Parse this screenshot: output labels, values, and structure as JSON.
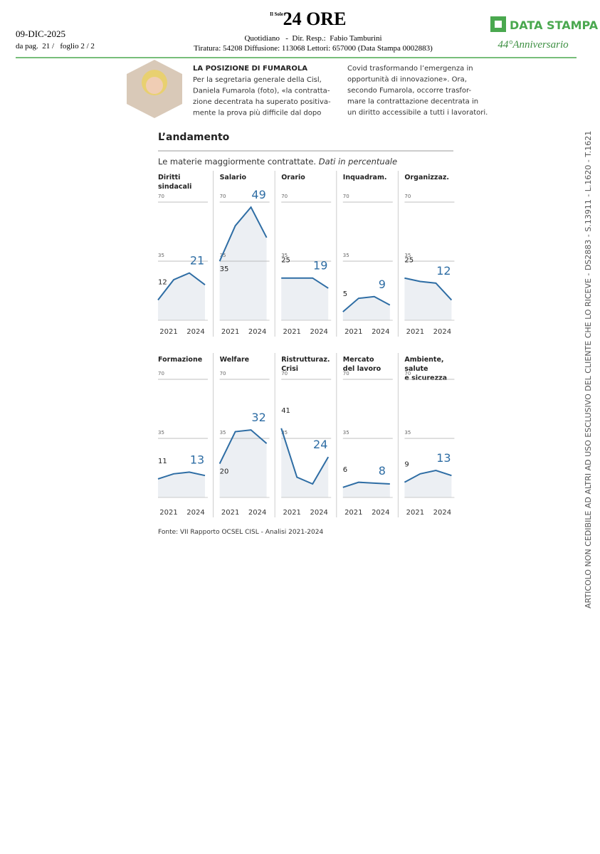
{
  "header": {
    "date": "09-DIC-2025",
    "page": "da pag.  21 /   foglio 2 / 2",
    "logo_small": "Il Sole",
    "logo": "24 ORE",
    "info": "Quotidiano   -  Dir. Resp.:  Fabio Tamburini",
    "circulation": "Tiratura: 54208 Diffusione: 113068 Lettori: 657000 (Data Stampa 0002883)",
    "brand": "DATA STAMPA",
    "anniversary": "44°Anniversario"
  },
  "side_note": "ARTICOLO NON CEDIBILE AD ALTRI AD USO ESCLUSIVO DEL CLIENTE CHE LO RICEVE - DS2883 - S.13911 - L.1620 - T.1621",
  "article": {
    "heading": "LA POSIZIONE DI FUMAROLA",
    "column1": [
      "Per la segretaria generale della Cisl,",
      "Daniela Fumarola (foto), «la contratta-",
      "zione decentrata ha superato positiva-",
      "mente la prova più difficile dal dopo"
    ],
    "column2": [
      "Covid trasformando l’emergenza in",
      "opportunità di innovazione». Ora,",
      "secondo Fumarola, occorre trasfor-",
      "mare la contrattazione decentrata in",
      "un diritto accessibile a tutti i lavoratori."
    ]
  },
  "figure": {
    "title": "L’andamento",
    "subtitle": "Le materie maggiormente contrattate.",
    "subtitle_note": "Dati in percentuale",
    "source": "Fonte: VII Rapporto OCSEL CISL - Analisi 2021-2024"
  },
  "chart_data": [
    {
      "type": "line",
      "title": "Diritti\nsindacali",
      "categories": [
        "2021",
        null,
        null,
        "2024"
      ],
      "values": [
        12,
        24,
        28,
        21
      ],
      "ylim": [
        0,
        70
      ],
      "yticks": [
        35,
        70
      ],
      "color": "#2e6da4",
      "fill": "#eceff3"
    },
    {
      "type": "line",
      "title": "Salario",
      "categories": [
        "2021",
        null,
        null,
        "2024"
      ],
      "values": [
        35,
        56,
        67,
        49
      ],
      "ylim": [
        0,
        70
      ],
      "yticks": [
        35,
        70
      ],
      "color": "#2e6da4",
      "fill": "#eceff3"
    },
    {
      "type": "line",
      "title": "Orario",
      "categories": [
        "2021",
        null,
        null,
        "2024"
      ],
      "values": [
        25,
        25,
        25,
        19
      ],
      "ylim": [
        0,
        70
      ],
      "yticks": [
        35,
        70
      ],
      "color": "#2e6da4",
      "fill": "#eceff3"
    },
    {
      "type": "line",
      "title": "Inquadram.",
      "categories": [
        "2021",
        null,
        null,
        "2024"
      ],
      "values": [
        5,
        13,
        14,
        9
      ],
      "ylim": [
        0,
        70
      ],
      "yticks": [
        35,
        70
      ],
      "color": "#2e6da4",
      "fill": "#eceff3"
    },
    {
      "type": "line",
      "title": "Organizzaz.",
      "categories": [
        "2021",
        null,
        null,
        "2024"
      ],
      "values": [
        25,
        23,
        22,
        12
      ],
      "ylim": [
        0,
        70
      ],
      "yticks": [
        35,
        70
      ],
      "color": "#2e6da4",
      "fill": "#eceff3"
    },
    {
      "type": "line",
      "title": "Formazione",
      "categories": [
        "2021",
        null,
        null,
        "2024"
      ],
      "values": [
        11,
        14,
        15,
        13
      ],
      "ylim": [
        0,
        70
      ],
      "yticks": [
        35,
        70
      ],
      "color": "#2e6da4",
      "fill": "#eceff3"
    },
    {
      "type": "line",
      "title": "Welfare",
      "categories": [
        "2021",
        null,
        null,
        "2024"
      ],
      "values": [
        20,
        39,
        40,
        32
      ],
      "ylim": [
        0,
        70
      ],
      "yticks": [
        35,
        70
      ],
      "color": "#2e6da4",
      "fill": "#eceff3"
    },
    {
      "type": "line",
      "title": "Ristrutturaz.\nCrisi",
      "categories": [
        "2021",
        null,
        null,
        "2024"
      ],
      "values": [
        41,
        12,
        8,
        24
      ],
      "ylim": [
        0,
        70
      ],
      "yticks": [
        35,
        70
      ],
      "color": "#2e6da4",
      "fill": "#eceff3"
    },
    {
      "type": "line",
      "title": "Mercato\ndel lavoro",
      "categories": [
        "2021",
        null,
        null,
        "2024"
      ],
      "values": [
        6,
        9,
        8.5,
        8
      ],
      "ylim": [
        0,
        70
      ],
      "yticks": [
        35,
        70
      ],
      "color": "#2e6da4",
      "fill": "#eceff3"
    },
    {
      "type": "line",
      "title": "Ambiente,\nsalute\ne sicurezza",
      "categories": [
        "2021",
        null,
        null,
        "2024"
      ],
      "values": [
        9,
        14,
        16,
        13
      ],
      "ylim": [
        0,
        70
      ],
      "yticks": [
        35,
        70
      ],
      "color": "#2e6da4",
      "fill": "#eceff3"
    }
  ]
}
